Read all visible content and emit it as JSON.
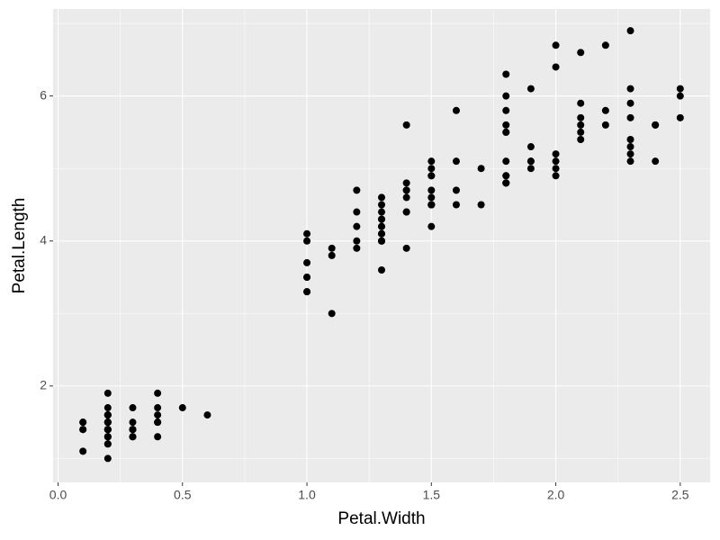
{
  "chart_data": {
    "type": "scatter",
    "x_label": "Petal.Width",
    "y_label": "Petal.Length",
    "color": "#000000",
    "background": "#ebebeb",
    "grid": true,
    "xlim": [
      -0.02,
      2.62
    ],
    "ylim": [
      0.67,
      7.2
    ],
    "xticks": [
      {
        "value": 0,
        "label": "0.0"
      },
      0.5,
      {
        "value": 1,
        "label": "1.0"
      },
      1.5,
      {
        "value": 2,
        "label": "2.0"
      },
      2.5
    ],
    "yticks": [
      2,
      4,
      6
    ],
    "x": [
      0.2,
      0.2,
      0.2,
      0.2,
      0.2,
      0.4,
      0.3,
      0.2,
      0.2,
      0.1,
      0.2,
      0.2,
      0.1,
      0.1,
      0.2,
      0.4,
      0.4,
      0.3,
      0.3,
      0.3,
      0.2,
      0.4,
      0.2,
      0.5,
      0.2,
      0.2,
      0.4,
      0.2,
      0.2,
      0.2,
      0.2,
      0.4,
      0.1,
      0.2,
      0.2,
      0.2,
      0.2,
      0.1,
      0.2,
      0.2,
      0.3,
      0.3,
      0.2,
      0.6,
      0.4,
      0.3,
      0.2,
      0.2,
      0.2,
      0.2,
      1.4,
      1.5,
      1.5,
      1.3,
      1.5,
      1.3,
      1.6,
      1.0,
      1.3,
      1.4,
      1.0,
      1.5,
      1.0,
      1.4,
      1.3,
      1.4,
      1.5,
      1.0,
      1.5,
      1.1,
      1.8,
      1.3,
      1.5,
      1.2,
      1.3,
      1.4,
      1.4,
      1.7,
      1.5,
      1.0,
      1.1,
      1.0,
      1.2,
      1.6,
      1.5,
      1.6,
      1.5,
      1.3,
      1.3,
      1.3,
      1.2,
      1.4,
      1.2,
      1.0,
      1.3,
      1.2,
      1.3,
      1.3,
      1.1,
      1.3,
      2.5,
      1.9,
      2.1,
      1.8,
      2.2,
      2.1,
      1.7,
      1.8,
      1.8,
      2.5,
      2.0,
      1.9,
      2.1,
      2.0,
      2.4,
      2.3,
      1.8,
      2.2,
      2.3,
      1.5,
      2.3,
      2.0,
      2.0,
      1.8,
      2.1,
      1.8,
      1.8,
      1.8,
      2.1,
      1.6,
      1.9,
      2.0,
      2.2,
      1.5,
      1.4,
      2.3,
      2.4,
      1.8,
      1.8,
      2.1,
      2.4,
      2.3,
      1.9,
      2.3,
      2.5,
      2.3,
      1.9,
      2.0,
      2.3,
      1.8
    ],
    "values": [
      1.4,
      1.4,
      1.3,
      1.5,
      1.4,
      1.7,
      1.4,
      1.5,
      1.4,
      1.5,
      1.5,
      1.6,
      1.4,
      1.1,
      1.2,
      1.5,
      1.3,
      1.4,
      1.7,
      1.5,
      1.7,
      1.5,
      1.0,
      1.7,
      1.9,
      1.6,
      1.6,
      1.5,
      1.4,
      1.6,
      1.6,
      1.5,
      1.5,
      1.4,
      1.5,
      1.2,
      1.3,
      1.4,
      1.3,
      1.5,
      1.3,
      1.3,
      1.3,
      1.6,
      1.9,
      1.4,
      1.6,
      1.4,
      1.5,
      1.4,
      4.7,
      4.5,
      4.9,
      4.0,
      4.6,
      4.5,
      4.7,
      3.3,
      4.6,
      3.9,
      3.5,
      4.2,
      4.0,
      4.7,
      3.6,
      4.4,
      4.5,
      4.1,
      4.5,
      3.9,
      4.8,
      4.0,
      4.9,
      4.7,
      4.3,
      4.4,
      4.8,
      5.0,
      4.5,
      3.5,
      3.8,
      3.7,
      3.9,
      5.1,
      4.5,
      4.5,
      4.7,
      4.4,
      4.1,
      4.0,
      4.4,
      4.6,
      4.0,
      3.3,
      4.2,
      4.2,
      4.2,
      4.3,
      3.0,
      4.1,
      6.0,
      5.1,
      5.9,
      5.6,
      5.8,
      6.6,
      4.5,
      6.3,
      5.8,
      6.1,
      5.1,
      5.3,
      5.5,
      5.0,
      5.1,
      5.3,
      5.5,
      6.7,
      6.9,
      5.0,
      5.7,
      4.9,
      6.7,
      4.9,
      5.7,
      6.0,
      4.8,
      4.9,
      5.6,
      5.8,
      6.1,
      6.4,
      5.6,
      5.1,
      5.6,
      6.1,
      5.6,
      5.5,
      4.8,
      5.4,
      5.6,
      5.1,
      5.1,
      5.9,
      5.7,
      5.2,
      5.0,
      5.2,
      5.4,
      5.1
    ]
  }
}
